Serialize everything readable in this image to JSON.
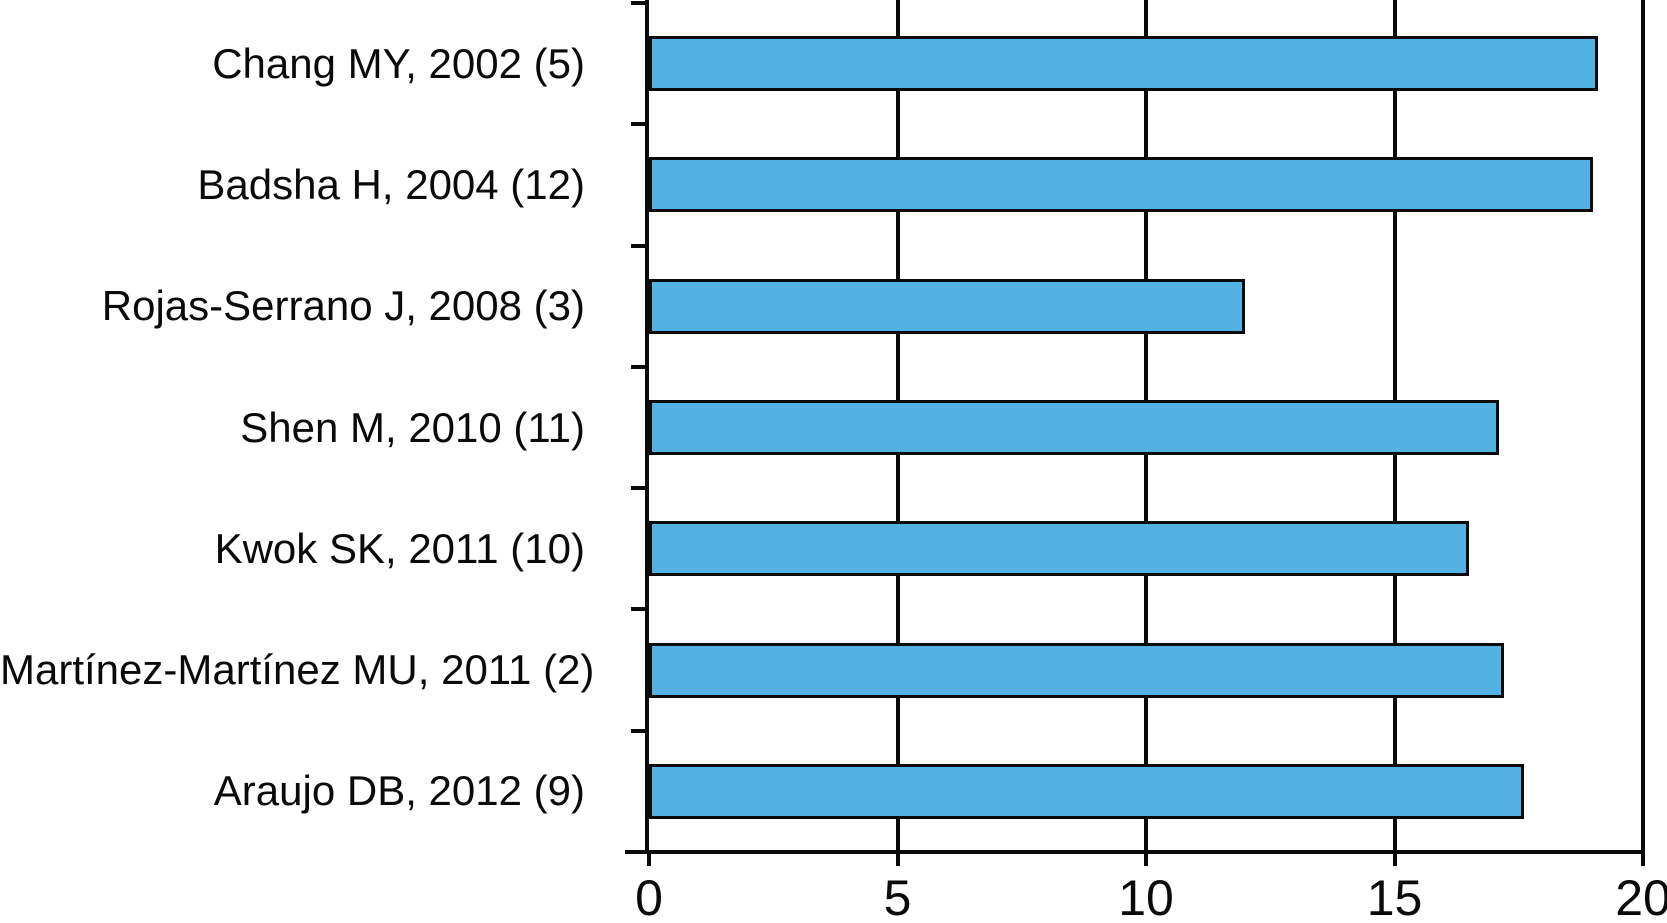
{
  "chart_data": {
    "type": "bar",
    "orientation": "horizontal",
    "title": "",
    "xlabel": "",
    "ylabel": "",
    "categories": [
      "Chang MY, 2002 (5)",
      "Badsha H, 2004 (12)",
      "Rojas-Serrano J, 2008 (3)",
      "Shen M, 2010 (11)",
      "Kwok SK, 2011 (10)",
      "Martínez-Martínez MU, 2011 (2)",
      "Araujo DB, 2012 (9)"
    ],
    "values": [
      19.1,
      19.0,
      12.0,
      17.1,
      16.5,
      17.2,
      17.6
    ],
    "x_ticks": [
      0,
      5,
      10,
      15,
      20
    ],
    "x_tick_labels": [
      "0",
      "5",
      "10",
      "15",
      "20"
    ],
    "xlim": [
      0,
      20
    ],
    "grid": "vertical gridlines at x ticks, drawn behind bars",
    "legend_position": "none",
    "colors": {
      "bar_fill": "#54B2E2",
      "bar_border": "#0a0a0a",
      "axis": "#0a0a0a",
      "background": "#ffffff"
    }
  }
}
